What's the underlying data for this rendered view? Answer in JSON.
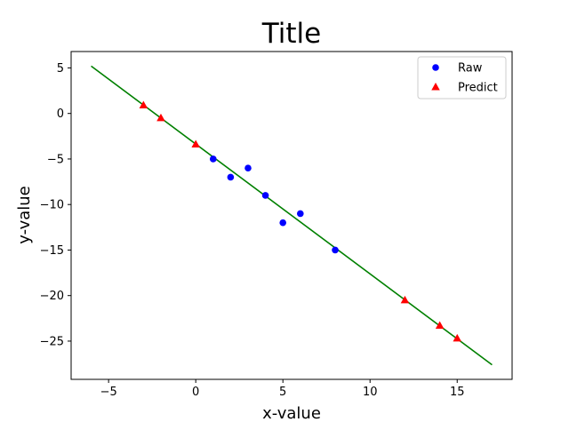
{
  "chart_data": {
    "type": "scatter",
    "title": "Title",
    "xlabel": "x-value",
    "ylabel": "y-value",
    "xlim": [
      -7.15,
      18.15
    ],
    "ylim": [
      -29.2,
      6.8
    ],
    "xticks": [
      -5,
      0,
      5,
      10,
      15
    ],
    "yticks": [
      5,
      0,
      -5,
      -10,
      -15,
      -20,
      -25
    ],
    "grid": false,
    "legend": "top-right",
    "series": [
      {
        "name": "Raw",
        "kind": "scatter",
        "marker": "circle",
        "color": "#0000ff",
        "x": [
          1,
          2,
          3,
          4,
          5,
          6,
          8
        ],
        "y": [
          -5,
          -7,
          -6,
          -9,
          -12,
          -11,
          -15
        ]
      },
      {
        "name": "Predict",
        "kind": "scatter",
        "marker": "triangle",
        "color": "#ff0000",
        "x": [
          -3,
          -2,
          0,
          12,
          14,
          15
        ],
        "y": [
          0.9,
          -0.5,
          -3.4,
          -20.5,
          -23.3,
          -24.7
        ]
      },
      {
        "kind": "line",
        "color": "#008000",
        "x": [
          -6,
          17
        ],
        "y": [
          5.2,
          -27.6
        ]
      }
    ]
  }
}
